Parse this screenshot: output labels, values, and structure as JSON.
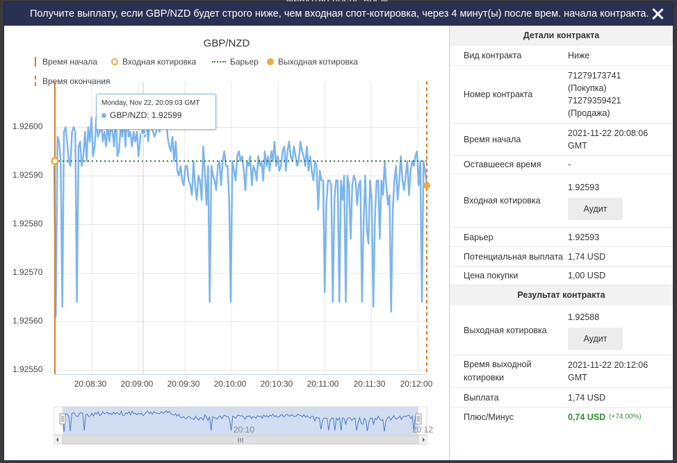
{
  "background": {
    "text": "минут(ы) после врем."
  },
  "dialog": {
    "title": "Получите выплату, если GBP/NZD будет строго ниже, чем входная спот-котировка, через 4 минут(ы) после врем. начала контракта."
  },
  "chart": {
    "title": "GBP/NZD",
    "legend": {
      "start_time": "Время начала",
      "entry_spot": "Входная котировка",
      "barrier": "Барьер",
      "exit_spot": "Выходная котировка",
      "end_time": "Время окончания"
    },
    "tooltip": {
      "date": "Monday, Nov 22, 20:09:03 GMT",
      "value": "GBP/NZD: 1.92599"
    },
    "navigator_labels": [
      "20:10",
      "20:12"
    ]
  },
  "chart_data": {
    "type": "line",
    "title": "GBP/NZD",
    "series": [
      {
        "name": "GBP/NZD",
        "color": "#7cb5ec"
      }
    ],
    "y_ticks": [
      "1.92600",
      "1.92590",
      "1.92580",
      "1.92570",
      "1.92560",
      "1.92550"
    ],
    "x_ticks": [
      "20:08:30",
      "20:09:00",
      "20:09:30",
      "20:10:00",
      "20:10:30",
      "20:11:00",
      "20:11:30",
      "20:12:00"
    ],
    "ylim": [
      1.9255,
      1.92605
    ],
    "xlim": [
      "20:08:06",
      "20:12:06"
    ],
    "barrier": 1.92593,
    "entry_spot": {
      "time": "20:08:06",
      "value": 1.92593
    },
    "exit_spot": {
      "time": "20:12:06",
      "value": 1.92588
    },
    "start_time": "20:08:06",
    "end_time": "20:12:06",
    "values": [
      1.92592,
      1.92561,
      1.92598,
      1.92597,
      1.92593,
      1.92563,
      1.92599,
      1.926,
      1.92597,
      1.92593,
      1.92592,
      1.92599,
      1.926,
      1.92599,
      1.92564,
      1.92596,
      1.92597,
      1.92592,
      1.92594,
      1.92599,
      1.92593,
      1.926,
      1.92597,
      1.92602,
      1.92594,
      1.92596,
      1.92602,
      1.92598,
      1.92599,
      1.92601,
      1.92597,
      1.92599,
      1.92596,
      1.92601,
      1.92597,
      1.926,
      1.92599,
      1.92596,
      1.92603,
      1.92594,
      1.92595,
      1.926,
      1.92598,
      1.92602,
      1.92596,
      1.92603,
      1.92598,
      1.92599,
      1.92596,
      1.92599,
      1.92597,
      1.92599,
      1.92594,
      1.92597,
      1.92601,
      1.92603,
      1.92598,
      1.92601,
      1.92597,
      1.92602,
      1.926,
      1.92599,
      1.92598,
      1.92599,
      1.92602,
      1.92599,
      1.92601,
      1.92604,
      1.926,
      1.92603,
      1.92598,
      1.92596,
      1.92595,
      1.92598,
      1.92593,
      1.92597,
      1.92591,
      1.9259,
      1.92592,
      1.92589,
      1.92588,
      1.92592,
      1.92592,
      1.92589,
      1.92588,
      1.92586,
      1.92593,
      1.92588,
      1.92585,
      1.9259,
      1.92589,
      1.92585,
      1.92596,
      1.92591,
      1.92584,
      1.92592,
      1.92564,
      1.92592,
      1.9259,
      1.92589,
      1.92587,
      1.92592,
      1.92593,
      1.92588,
      1.92593,
      1.92595,
      1.92592,
      1.92592,
      1.92585,
      1.92564,
      1.92593,
      1.92591,
      1.92589,
      1.92594,
      1.92595,
      1.92593,
      1.92594,
      1.92591,
      1.92587,
      1.92593,
      1.92592,
      1.92594,
      1.92588,
      1.92592,
      1.92591,
      1.92589,
      1.92594,
      1.92592,
      1.92593,
      1.92589,
      1.92595,
      1.92592,
      1.92594,
      1.92591,
      1.92595,
      1.92593,
      1.92597,
      1.92592,
      1.92594,
      1.92591,
      1.92592,
      1.92595,
      1.92596,
      1.92591,
      1.92595,
      1.92597,
      1.92594,
      1.92593,
      1.92596,
      1.92594,
      1.92592,
      1.92593,
      1.92597,
      1.92595,
      1.92594,
      1.92592,
      1.92596,
      1.92591,
      1.92594,
      1.92591,
      1.92589,
      1.92593,
      1.92592,
      1.92583,
      1.92591,
      1.92589,
      1.92589,
      1.92566,
      1.92584,
      1.92589,
      1.92589,
      1.92588,
      1.92564,
      1.92585,
      1.92589,
      1.92589,
      1.92564,
      1.92589,
      1.92585,
      1.9259,
      1.92564,
      1.9259,
      1.92588,
      1.92577,
      1.92588,
      1.9259,
      1.92589,
      1.92584,
      1.92588,
      1.92589,
      1.92564,
      1.9258,
      1.9259,
      1.92579,
      1.92576,
      1.92589,
      1.92585,
      1.92563,
      1.92581,
      1.92589,
      1.92589,
      1.92577,
      1.92589,
      1.92586,
      1.92593,
      1.92588,
      1.92584,
      1.92586,
      1.92562,
      1.92583,
      1.92589,
      1.92592,
      1.92585,
      1.92589,
      1.92594,
      1.92589,
      1.92587,
      1.9259,
      1.92593,
      1.92586,
      1.92591,
      1.92593,
      1.92592,
      1.92594,
      1.92595,
      1.92588,
      1.92593,
      1.92564,
      1.92593,
      1.92591,
      1.92588
    ]
  },
  "details": {
    "header": "Детали контракта",
    "contract_type_label": "Вид контракта",
    "contract_type": "Ниже",
    "contract_id_label": "Номер контракта",
    "contract_id_lines": [
      "71279173741",
      "(Покупка)",
      "71279359421",
      "(Продажа)"
    ],
    "start_time_label": "Время начала",
    "start_time_lines": [
      "2021-11-22 20:08:06",
      "GMT"
    ],
    "remaining_label": "Оставшееся время",
    "remaining": "-",
    "entry_spot_label": "Входная котировка",
    "entry_spot": "1.92593",
    "audit_label": "Аудит",
    "barrier_label": "Барьер",
    "barrier": "1.92593",
    "payout_label": "Потенциальная выплата",
    "payout": "1,74 USD",
    "price_label": "Цена покупки",
    "price": "1,00 USD"
  },
  "result": {
    "header": "Результат контракта",
    "exit_spot_label": "Выходная котировка",
    "exit_spot": "1.92588",
    "audit_label": "Аудит",
    "exit_time_label_lines": [
      "Время выходной",
      "котировки"
    ],
    "exit_time_lines": [
      "2021-11-22 20:12:06",
      "GMT"
    ],
    "payout_label": "Выплата",
    "payout": "1,74 USD",
    "pl_label": "Плюс/Минус",
    "pl_value": "0,74 USD",
    "pl_percent": "(+74.00%)"
  }
}
